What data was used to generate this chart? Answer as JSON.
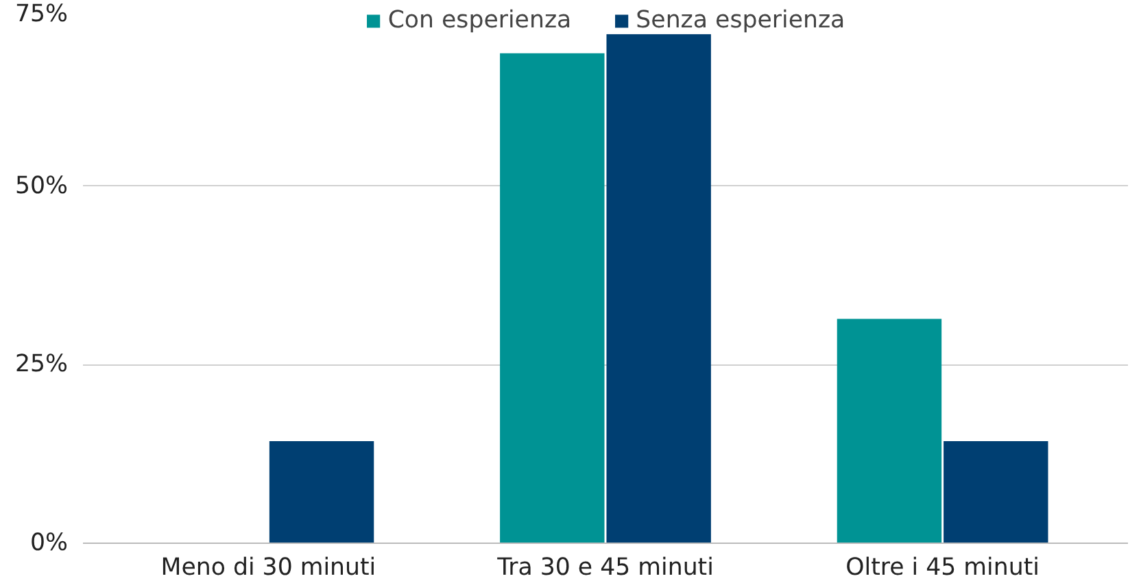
{
  "chart_data": {
    "type": "bar",
    "categories": [
      "Meno di 30 minuti",
      "Tra 30 e 45 minuti",
      "Oltre i 45 minuti"
    ],
    "series": [
      {
        "name": "Con esperienza",
        "color": "#009394",
        "values": [
          0,
          68.6,
          31.4
        ]
      },
      {
        "name": "Senza esperienza",
        "color": "#003f72",
        "values": [
          14.3,
          71.4,
          14.3
        ]
      }
    ],
    "ylim": [
      0,
      75
    ],
    "yticks": [
      {
        "value": 0,
        "label": "0%"
      },
      {
        "value": 25,
        "label": "25%"
      },
      {
        "value": 50,
        "label": "50%"
      },
      {
        "value": 75,
        "label": "75%"
      }
    ],
    "grid": "y",
    "legend": "top"
  }
}
